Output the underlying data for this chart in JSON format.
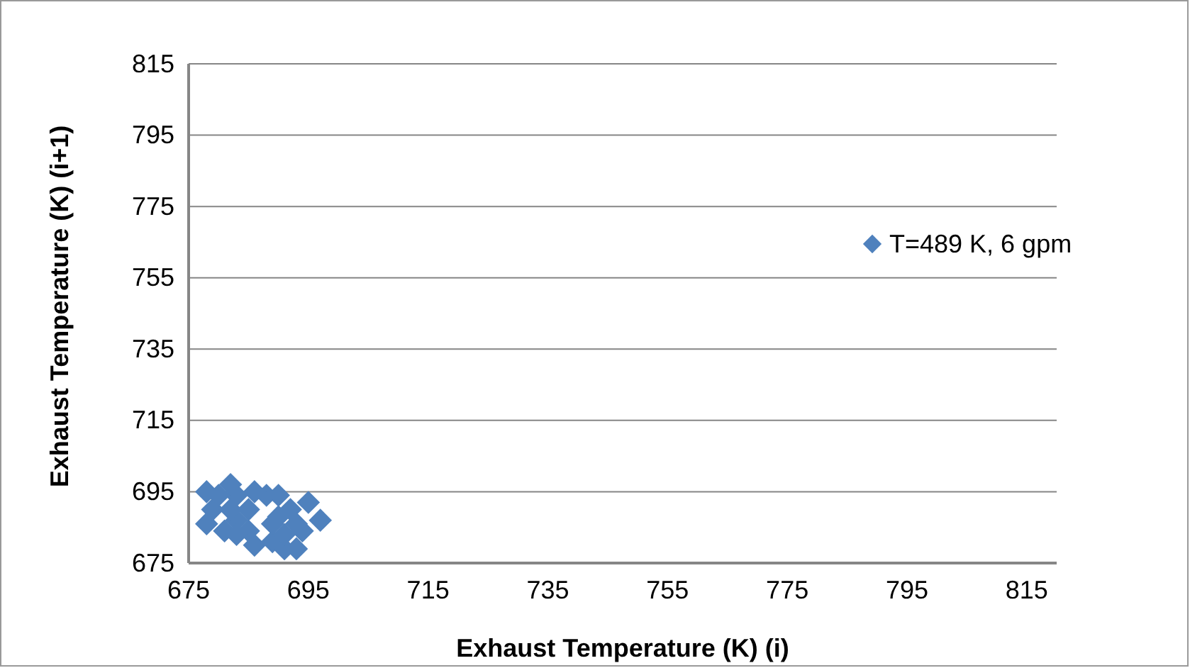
{
  "chart_data": {
    "type": "scatter",
    "xlabel": "Exhaust Temperature (K) (i)",
    "ylabel": "Exhaust Temperature (K) (i+1)",
    "xlim": [
      675,
      820
    ],
    "ylim": [
      675,
      815
    ],
    "xticks": [
      675,
      695,
      715,
      735,
      755,
      775,
      795,
      815
    ],
    "yticks": [
      675,
      695,
      715,
      735,
      755,
      775,
      795,
      815
    ],
    "grid": "y",
    "legend": "right",
    "marker": "diamond",
    "series": [
      {
        "name": "T=489 K, 6 gpm",
        "color": "#4f81bd",
        "x": [
          678,
          678,
          682,
          683,
          686,
          688,
          691,
          693,
          694,
          697,
          679,
          681,
          683,
          685,
          689,
          695,
          680,
          682,
          690,
          692,
          683,
          685,
          689,
          691,
          693,
          686,
          690
        ],
        "values": [
          695,
          686,
          697,
          694,
          680,
          694,
          679,
          679,
          684,
          687,
          690,
          684,
          687,
          684,
          686,
          692,
          694,
          690,
          688,
          690,
          683,
          690,
          681,
          683,
          686,
          695,
          694
        ]
      }
    ]
  }
}
